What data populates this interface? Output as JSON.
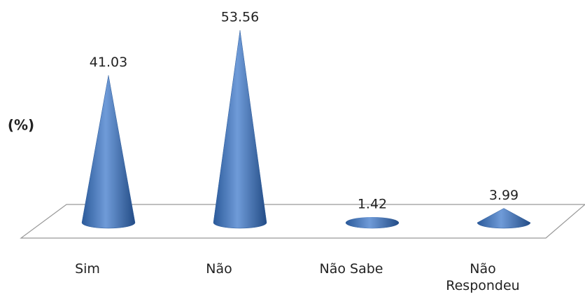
{
  "chart_data": {
    "type": "cone",
    "y_label": "(%)",
    "categories": [
      "Sim",
      "Não",
      "Não Sabe",
      "Não Respondeu"
    ],
    "values": [
      41.03,
      53.56,
      1.42,
      3.99
    ],
    "color": "#4f81bd"
  }
}
